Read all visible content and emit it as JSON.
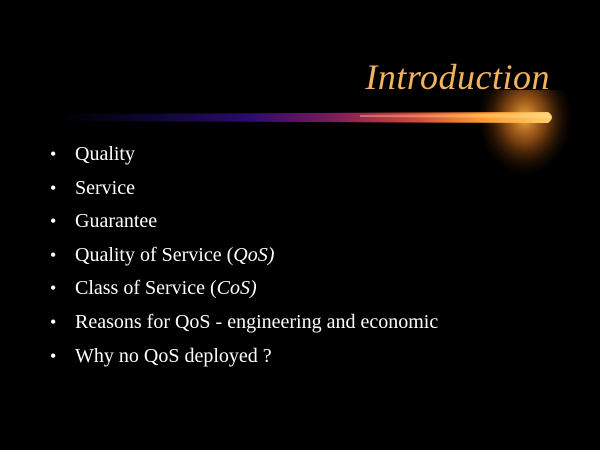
{
  "slide": {
    "title": "Introduction",
    "bullets": [
      {
        "segments": [
          {
            "text": "Quality",
            "italic": false
          }
        ]
      },
      {
        "segments": [
          {
            "text": "Service",
            "italic": false
          }
        ]
      },
      {
        "segments": [
          {
            "text": "Guarantee",
            "italic": false
          }
        ]
      },
      {
        "segments": [
          {
            "text": "Quality of Service (",
            "italic": false
          },
          {
            "text": "QoS)",
            "italic": true
          }
        ]
      },
      {
        "segments": [
          {
            "text": "Class of Service (",
            "italic": false
          },
          {
            "text": "CoS)",
            "italic": true
          }
        ]
      },
      {
        "segments": [
          {
            "text": "Reasons for QoS - engineering and economic",
            "italic": false
          }
        ]
      },
      {
        "segments": [
          {
            "text": "Why no QoS deployed ?",
            "italic": false
          }
        ]
      }
    ]
  },
  "colors": {
    "background": "#000000",
    "title": "#f2b25e",
    "text": "#ffffff",
    "beam_start": "#1a0a5a",
    "beam_end": "#ffa030"
  }
}
